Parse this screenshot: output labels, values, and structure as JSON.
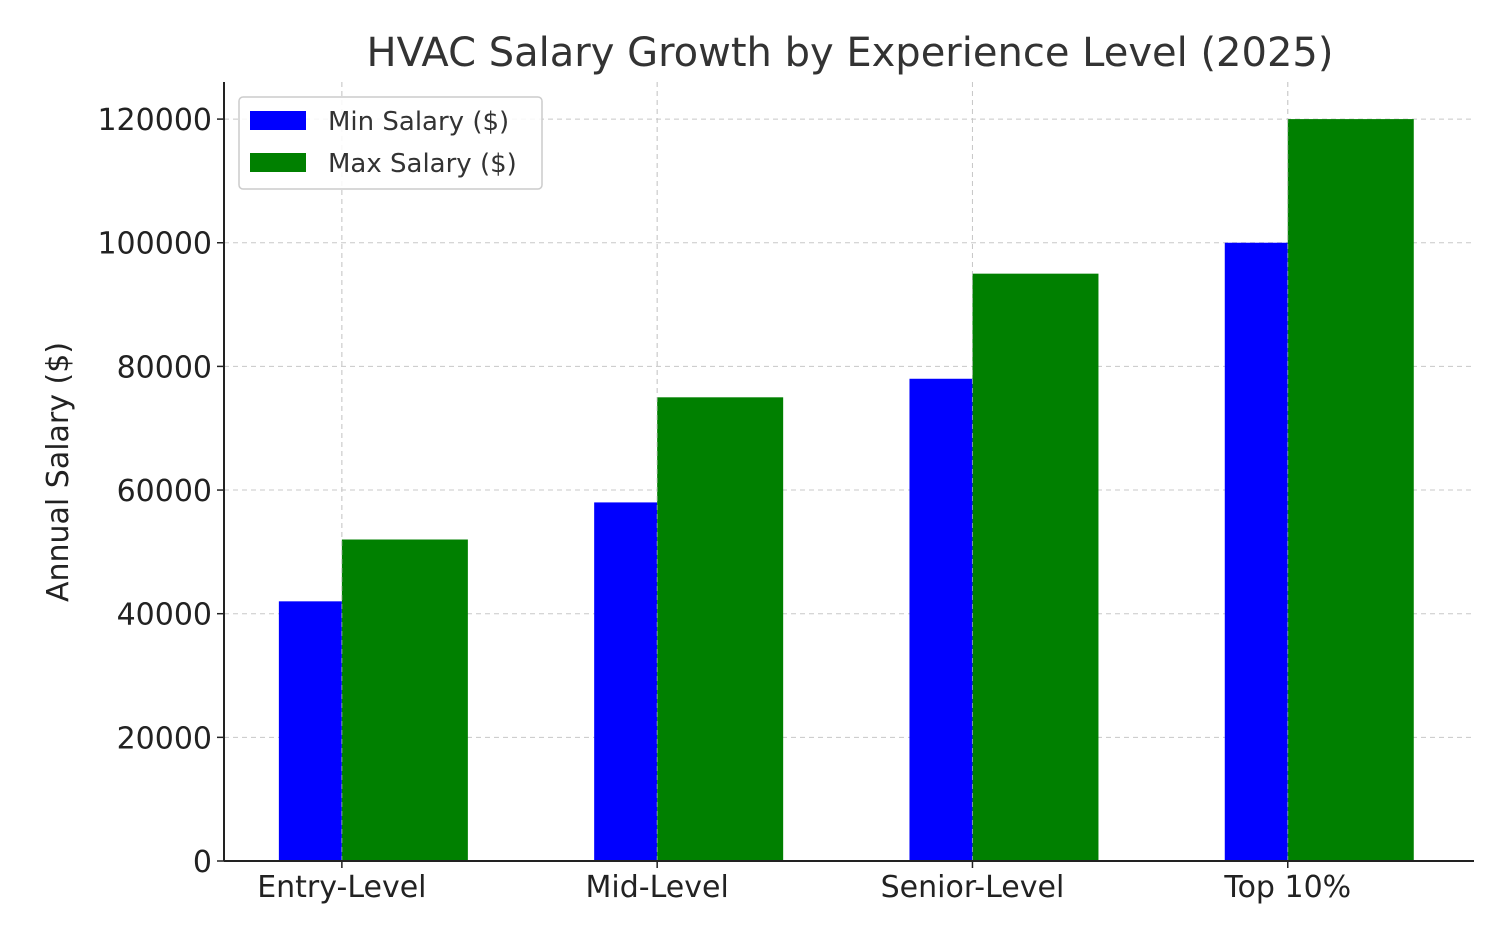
{
  "chart_data": {
    "type": "bar",
    "title": "HVAC Salary Growth by Experience Level (2025)",
    "xlabel": "",
    "ylabel": "Annual Salary ($)",
    "categories": [
      "Entry-Level",
      "Mid-Level",
      "Senior-Level",
      "Top 10%"
    ],
    "series": [
      {
        "name": "Min Salary ($)",
        "values": [
          42000,
          58000,
          78000,
          100000
        ],
        "color": "#0000ff"
      },
      {
        "name": "Max Salary ($)",
        "values": [
          52000,
          75000,
          95000,
          120000
        ],
        "color": "#008000"
      }
    ],
    "ylim": [
      0,
      126000
    ],
    "yticks": [
      0,
      20000,
      40000,
      60000,
      80000,
      100000,
      120000
    ],
    "ytick_labels": [
      "0",
      "20000",
      "40000",
      "60000",
      "80000",
      "100000",
      "120000"
    ],
    "grid": true,
    "legend_position": "top-left"
  }
}
